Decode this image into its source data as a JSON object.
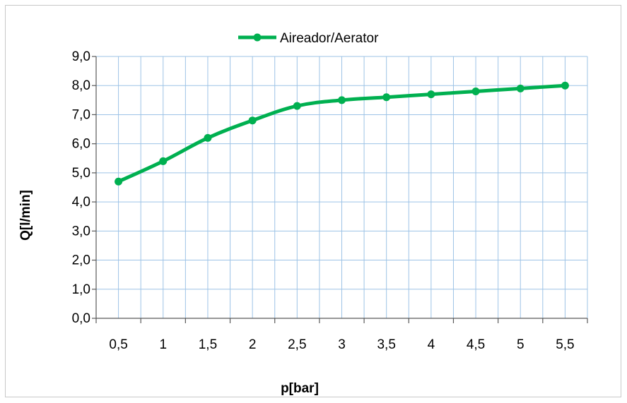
{
  "chart_data": {
    "type": "line",
    "title": "",
    "xlabel": "p[bar]",
    "ylabel": "Q[l/min]",
    "categories": [
      "0,5",
      "1",
      "1,5",
      "2",
      "2,5",
      "3",
      "3,5",
      "4",
      "4,5",
      "5",
      "5,5"
    ],
    "series": [
      {
        "name": "Aireador/Aerator",
        "color": "#00b050",
        "values": [
          4.7,
          5.4,
          6.2,
          6.8,
          7.3,
          7.5,
          7.6,
          7.7,
          7.8,
          7.9,
          8.0
        ]
      }
    ],
    "ylim": [
      0,
      9
    ],
    "yticks": [
      "0,0",
      "1,0",
      "2,0",
      "3,0",
      "4,0",
      "5,0",
      "6,0",
      "7,0",
      "8,0",
      "9,0"
    ],
    "grid": true,
    "grid_color": "#9dc3e6",
    "legend_position": "top"
  }
}
